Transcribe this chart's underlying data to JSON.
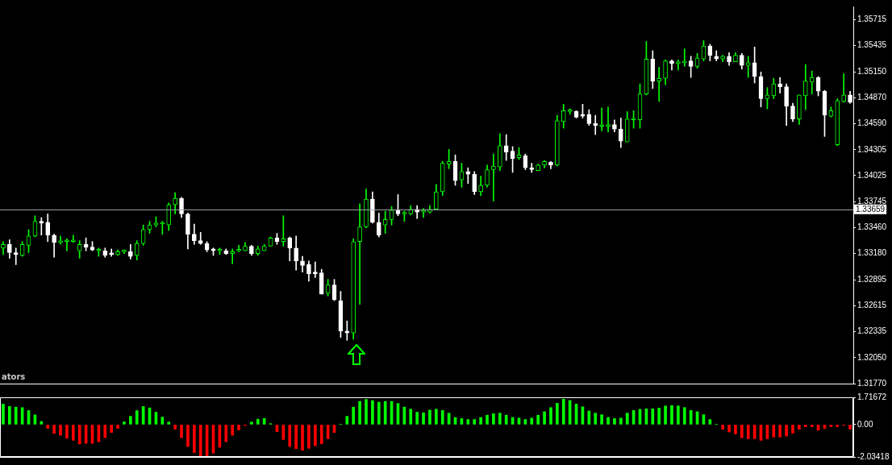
{
  "chart_data": [
    {
      "type": "candlestick",
      "color": "#00ff00",
      "colors": [
        "#00ff00",
        "#ffffff",
        "#ffffff",
        "#00ff00",
        "#00ff00",
        "#00ff00",
        "#ffffff",
        "#ffffff",
        "#ffffff",
        "#00ff00",
        "#00ff00",
        "#00ff00",
        "#00ff00",
        "#ffffff",
        "#ffffff",
        "#00ff00",
        "#ffffff",
        "#ffffff",
        "#00ff00",
        "#00ff00",
        "#ffffff",
        "#00ff00",
        "#00ff00",
        "#00ff00",
        "#00ff00",
        "#00ff00",
        "#00ff00",
        "#00ff00",
        "#ffffff",
        "#ffffff",
        "#ffffff",
        "#ffffff",
        "#ffffff",
        "#ffffff",
        "#00ff00",
        "#ffffff",
        "#00ff00",
        "#00ff00",
        "#00ff00",
        "#ffffff",
        "#00ff00",
        "#00ff00",
        "#00ff00",
        "#ffffff",
        "#00ff00",
        "#ffffff",
        "#ffffff",
        "#ffffff",
        "#ffffff",
        "#ffffff",
        "#ffffff",
        "#00ff00",
        "#ffffff",
        "#ffffff",
        "#ffffff",
        "#00ff00",
        "#00ff00",
        "#00ff00",
        "#ffffff",
        "#ffffff",
        "#00ff00",
        "#00ff00",
        "#ffffff",
        "#00ff00",
        "#00ff00",
        "#ffffff",
        "#00ff00",
        "#00ff00",
        "#00ff00",
        "#00ff00",
        "#00ff00",
        "#ffffff",
        "#00ff00",
        "#ffffff",
        "#ffffff",
        "#00ff00",
        "#00ff00",
        "#00ff00",
        "#00ff00",
        "#ffffff",
        "#ffffff",
        "#00ff00",
        "#ffffff",
        "#ffffff",
        "#00ff00",
        "#00ff00",
        "#ffffff",
        "#00ff00",
        "#00ff00",
        "#00ff00",
        "#ffffff",
        "#ffffff",
        "#ffffff",
        "#ffffff",
        "#00ff00",
        "#00ff00",
        "#ffffff",
        "#ffffff",
        "#00ff00",
        "#00ff00",
        "#00ff00",
        "#00ff00",
        "#ffffff",
        "#00ff00",
        "#00ff00",
        "#ffffff",
        "#00ff00",
        "#00ff00",
        "#ffffff",
        "#00ff00",
        "#00ff00",
        "#ffffff",
        "#ffffff",
        "#00ff00",
        "#ffffff",
        "#00ff00",
        "#ffffff",
        "#00ff00",
        "#ffffff",
        "#ffffff",
        "#00ff00",
        "#00ff00",
        "#ffffff",
        "#ffffff",
        "#ffffff",
        "#00ff00",
        "#00ff00",
        "#00ff00",
        "#ffffff",
        "#ffffff",
        "#00ff00",
        "#00ff00",
        "#00ff00",
        "#ffffff"
      ],
      "categories": [
        null,
        null,
        null,
        null,
        null,
        null,
        null,
        null,
        null,
        null,
        null,
        null,
        null,
        null,
        null,
        null,
        null,
        null,
        null,
        null,
        null,
        null,
        null,
        null,
        null,
        null,
        null,
        null,
        null,
        null,
        null,
        null,
        null,
        null,
        null,
        null,
        null,
        null,
        null,
        null,
        null,
        null,
        null,
        null,
        null,
        null,
        null,
        null,
        null,
        null,
        null,
        null,
        null,
        null,
        null,
        null,
        null,
        null,
        null,
        null,
        null,
        null,
        null,
        null,
        null,
        null,
        null,
        null,
        null,
        null,
        null,
        null,
        null,
        null,
        null,
        null,
        null,
        null,
        null,
        null,
        null,
        null,
        null,
        null,
        null,
        null,
        null,
        null,
        null,
        null,
        null,
        null,
        null,
        null,
        null,
        null,
        null,
        null,
        null,
        null,
        null,
        null,
        null,
        null,
        null,
        null,
        null,
        null,
        null,
        null,
        null,
        null,
        null,
        null,
        null,
        null,
        null,
        null,
        null,
        null,
        null,
        null,
        null,
        null,
        null,
        null,
        null,
        null,
        null,
        null,
        null,
        null,
        null,
        null
      ],
      "ohlc": [
        [
          1.3324,
          1.3331,
          1.3317,
          1.3328
        ],
        [
          1.3328,
          1.3333,
          1.3313,
          1.3319
        ],
        [
          1.3319,
          1.3324,
          1.3306,
          1.3317
        ],
        [
          1.3316,
          1.3331,
          1.3315,
          1.3328
        ],
        [
          1.3327,
          1.3344,
          1.3319,
          1.3337
        ],
        [
          1.3337,
          1.3359,
          1.3336,
          1.3353
        ],
        [
          1.3353,
          1.3357,
          1.3338,
          1.3351
        ],
        [
          1.3352,
          1.3361,
          1.3331,
          1.3338
        ],
        [
          1.3338,
          1.3339,
          1.3314,
          1.333
        ],
        [
          1.333,
          1.3337,
          1.3328,
          1.3331
        ],
        [
          1.3331,
          1.3334,
          1.3321,
          1.3332
        ],
        [
          1.3331,
          1.3338,
          1.333,
          1.3332
        ],
        [
          1.3321,
          1.3332,
          1.3313,
          1.3328
        ],
        [
          1.3328,
          1.3335,
          1.3321,
          1.3325
        ],
        [
          1.3325,
          1.3331,
          1.3321,
          1.3322
        ],
        [
          1.3321,
          1.3324,
          1.3315,
          1.3322
        ],
        [
          1.3321,
          1.3324,
          1.3314,
          1.3316
        ],
        [
          1.3318,
          1.3323,
          1.3315,
          1.3317
        ],
        [
          1.3317,
          1.3322,
          1.3316,
          1.332
        ],
        [
          1.332,
          1.3322,
          1.3318,
          1.332
        ],
        [
          1.332,
          1.3328,
          1.3312,
          1.3315
        ],
        [
          1.3316,
          1.3332,
          1.3311,
          1.3329
        ],
        [
          1.3329,
          1.3349,
          1.3327,
          1.3344
        ],
        [
          1.3344,
          1.3353,
          1.334,
          1.3349
        ],
        [
          1.3349,
          1.3358,
          1.3347,
          1.3351
        ],
        [
          1.335,
          1.3353,
          1.3339,
          1.3351
        ],
        [
          1.3349,
          1.3373,
          1.3343,
          1.3371
        ],
        [
          1.3371,
          1.3384,
          1.3361,
          1.3378
        ],
        [
          1.3378,
          1.3379,
          1.3357,
          1.3361
        ],
        [
          1.3361,
          1.3362,
          1.3323,
          1.3339
        ],
        [
          1.3339,
          1.335,
          1.3328,
          1.3332
        ],
        [
          1.3332,
          1.3341,
          1.3328,
          1.3329
        ],
        [
          1.3329,
          1.3331,
          1.332,
          1.3322
        ],
        [
          1.3323,
          1.3324,
          1.3316,
          1.3321
        ],
        [
          1.3321,
          1.3324,
          1.3317,
          1.3321
        ],
        [
          1.3321,
          1.3323,
          1.3317,
          1.3318
        ],
        [
          1.3318,
          1.3323,
          1.3307,
          1.332
        ],
        [
          1.3321,
          1.3327,
          1.332,
          1.3322
        ],
        [
          1.3321,
          1.333,
          1.3321,
          1.3326
        ],
        [
          1.3326,
          1.3327,
          1.3316,
          1.3318
        ],
        [
          1.3318,
          1.3326,
          1.3316,
          1.3323
        ],
        [
          1.3321,
          1.3328,
          1.3321,
          1.3326
        ],
        [
          1.3326,
          1.3336,
          1.3326,
          1.3335
        ],
        [
          1.3335,
          1.334,
          1.3328,
          1.3331
        ],
        [
          1.3331,
          1.3359,
          1.3326,
          1.3334
        ],
        [
          1.3335,
          1.3336,
          1.331,
          1.3324
        ],
        [
          1.3324,
          1.3337,
          1.33,
          1.331
        ],
        [
          1.331,
          1.3315,
          1.3298,
          1.3305
        ],
        [
          1.3306,
          1.331,
          1.3288,
          1.3296
        ],
        [
          1.3298,
          1.3309,
          1.3292,
          1.3296
        ],
        [
          1.3297,
          1.3301,
          1.3274,
          1.3274
        ],
        [
          1.3275,
          1.329,
          1.3272,
          1.3284
        ],
        [
          1.3284,
          1.329,
          1.3267,
          1.3268
        ],
        [
          1.3267,
          1.3277,
          1.3227,
          1.3234
        ],
        [
          1.3234,
          1.3245,
          1.3224,
          1.3232
        ],
        [
          1.3232,
          1.3334,
          1.3225,
          1.3331
        ],
        [
          1.3331,
          1.3372,
          1.3263,
          1.3347
        ],
        [
          1.3347,
          1.3388,
          1.3346,
          1.3377
        ],
        [
          1.3377,
          1.3385,
          1.3351,
          1.3352
        ],
        [
          1.3352,
          1.3362,
          1.3336,
          1.3338
        ],
        [
          1.3349,
          1.3364,
          1.334,
          1.3355
        ],
        [
          1.3355,
          1.3369,
          1.3349,
          1.3365
        ],
        [
          1.3365,
          1.3382,
          1.3359,
          1.3361
        ],
        [
          1.3361,
          1.3364,
          1.3353,
          1.3362
        ],
        [
          1.3361,
          1.337,
          1.336,
          1.3366
        ],
        [
          1.3366,
          1.337,
          1.3356,
          1.3363
        ],
        [
          1.3363,
          1.3367,
          1.3357,
          1.3363
        ],
        [
          1.3363,
          1.337,
          1.3362,
          1.3366
        ],
        [
          1.3366,
          1.3393,
          1.3366,
          1.3385
        ],
        [
          1.3385,
          1.3418,
          1.3381,
          1.3416
        ],
        [
          1.3415,
          1.3431,
          1.341,
          1.3418
        ],
        [
          1.3418,
          1.3425,
          1.3392,
          1.3397
        ],
        [
          1.3398,
          1.3416,
          1.339,
          1.3407
        ],
        [
          1.3407,
          1.3411,
          1.3394,
          1.3404
        ],
        [
          1.3404,
          1.3407,
          1.3382,
          1.3385
        ],
        [
          1.3385,
          1.3402,
          1.3381,
          1.3392
        ],
        [
          1.3392,
          1.3414,
          1.339,
          1.3409
        ],
        [
          1.3409,
          1.3426,
          1.3375,
          1.3413
        ],
        [
          1.3412,
          1.3448,
          1.3408,
          1.3435
        ],
        [
          1.3435,
          1.3447,
          1.3419,
          1.3428
        ],
        [
          1.3429,
          1.3434,
          1.3406,
          1.3421
        ],
        [
          1.3422,
          1.3433,
          1.342,
          1.3425
        ],
        [
          1.3424,
          1.3426,
          1.3409,
          1.3411
        ],
        [
          1.3411,
          1.3416,
          1.3406,
          1.3409
        ],
        [
          1.3408,
          1.3415,
          1.3408,
          1.3414
        ],
        [
          1.3414,
          1.3419,
          1.3411,
          1.3418
        ],
        [
          1.3417,
          1.3418,
          1.341,
          1.3414
        ],
        [
          1.3414,
          1.3468,
          1.3413,
          1.3462
        ],
        [
          1.3461,
          1.348,
          1.3454,
          1.3473
        ],
        [
          1.3472,
          1.3475,
          1.3469,
          1.3473
        ],
        [
          1.3472,
          1.3473,
          1.3465,
          1.3466
        ],
        [
          1.3469,
          1.348,
          1.3465,
          1.3467
        ],
        [
          1.3469,
          1.3474,
          1.3457,
          1.3459
        ],
        [
          1.3459,
          1.3468,
          1.3447,
          1.3457
        ],
        [
          1.3456,
          1.3476,
          1.3451,
          1.3457
        ],
        [
          1.3456,
          1.3477,
          1.345,
          1.3458
        ],
        [
          1.3458,
          1.3463,
          1.345,
          1.3453
        ],
        [
          1.3453,
          1.3465,
          1.3433,
          1.344
        ],
        [
          1.3439,
          1.3472,
          1.3439,
          1.3464
        ],
        [
          1.3463,
          1.3473,
          1.3454,
          1.3464
        ],
        [
          1.3463,
          1.3502,
          1.3454,
          1.3491
        ],
        [
          1.3491,
          1.3548,
          1.349,
          1.3529
        ],
        [
          1.3529,
          1.3538,
          1.3497,
          1.3505
        ],
        [
          1.3505,
          1.352,
          1.3483,
          1.3508
        ],
        [
          1.3508,
          1.3528,
          1.3501,
          1.3527
        ],
        [
          1.3527,
          1.3528,
          1.3517,
          1.3524
        ],
        [
          1.3524,
          1.3528,
          1.3517,
          1.3525
        ],
        [
          1.3525,
          1.354,
          1.3521,
          1.3526
        ],
        [
          1.3527,
          1.3532,
          1.3509,
          1.3521
        ],
        [
          1.3521,
          1.3535,
          1.3519,
          1.353
        ],
        [
          1.3529,
          1.3549,
          1.3527,
          1.3543
        ],
        [
          1.3543,
          1.3545,
          1.3527,
          1.3533
        ],
        [
          1.3532,
          1.3538,
          1.3527,
          1.3529
        ],
        [
          1.3529,
          1.3533,
          1.3526,
          1.3532
        ],
        [
          1.3532,
          1.3536,
          1.3522,
          1.3526
        ],
        [
          1.3526,
          1.3536,
          1.3526,
          1.3533
        ],
        [
          1.3533,
          1.3535,
          1.3518,
          1.3522
        ],
        [
          1.3522,
          1.3532,
          1.3509,
          1.3525
        ],
        [
          1.3525,
          1.3542,
          1.3503,
          1.351
        ],
        [
          1.351,
          1.3515,
          1.3477,
          1.3486
        ],
        [
          1.3486,
          1.3498,
          1.3475,
          1.349
        ],
        [
          1.3489,
          1.3508,
          1.3486,
          1.3502
        ],
        [
          1.3502,
          1.3509,
          1.3492,
          1.3499
        ],
        [
          1.3499,
          1.3502,
          1.3457,
          1.3478
        ],
        [
          1.3478,
          1.3481,
          1.3461,
          1.3464
        ],
        [
          1.3464,
          1.349,
          1.3458,
          1.349
        ],
        [
          1.3489,
          1.3523,
          1.3474,
          1.3505
        ],
        [
          1.3504,
          1.3516,
          1.3491,
          1.3509
        ],
        [
          1.3509,
          1.351,
          1.3489,
          1.3494
        ],
        [
          1.3494,
          1.3495,
          1.3445,
          1.3468
        ],
        [
          1.3467,
          1.3477,
          1.3466,
          1.3473
        ],
        [
          1.3436,
          1.3486,
          1.3435,
          1.3484
        ],
        [
          1.3483,
          1.3513,
          1.3482,
          1.349
        ],
        [
          1.349,
          1.3494,
          1.3481,
          1.3482
        ]
      ],
      "ylim": [
        1.3177,
        1.3586
      ],
      "yticks": [
        1.35715,
        1.35435,
        {
          "value": 1.3515,
          "label": "1.35150"
        },
        {
          "value": 1.3487,
          "label": "1.34870"
        },
        {
          "value": 1.3459,
          "label": "1.34590"
        },
        1.34305,
        1.34025,
        1.33745,
        {
          "value": 1.3346,
          "label": "1.33460"
        },
        {
          "value": 1.3318,
          "label": "1.33180"
        },
        1.32895,
        1.32615,
        1.32335,
        {
          "value": 1.3205,
          "label": "1.32050"
        },
        {
          "value": 1.3177,
          "label": "1.31770"
        }
      ],
      "tick_labels": "y",
      "ref_lines": [
        {
          "axis": "y",
          "value": 1.33659,
          "label": "1.33659",
          "color": "#a0a8b0"
        }
      ],
      "annotations": [
        "ators"
      ]
    },
    {
      "type": "bar",
      "categories": [
        null,
        null,
        null,
        null,
        null,
        null,
        null,
        null,
        null,
        null,
        null,
        null,
        null,
        null,
        null,
        null,
        null,
        null,
        null,
        null,
        null,
        null,
        null,
        null,
        null,
        null,
        null,
        null,
        null,
        null,
        null,
        null,
        null,
        null,
        null,
        null,
        null,
        null,
        null,
        null,
        null,
        null,
        null,
        null,
        null,
        null,
        null,
        null,
        null,
        null,
        null,
        null,
        null,
        null,
        null,
        null,
        null,
        null,
        null,
        null,
        null,
        null,
        null,
        null,
        null,
        null,
        null,
        null,
        null,
        null,
        null,
        null,
        null,
        null,
        null,
        null,
        null,
        null,
        null,
        null,
        null,
        null,
        null,
        null,
        null,
        null,
        null,
        null,
        null,
        null,
        null,
        null,
        null,
        null,
        null,
        null,
        null,
        null,
        null,
        null,
        null,
        null,
        null,
        null,
        null,
        null,
        null,
        null,
        null,
        null,
        null,
        null,
        null,
        null,
        null,
        null,
        null,
        null,
        null,
        null,
        null,
        null,
        null,
        null,
        null,
        null,
        null,
        null,
        null,
        null,
        null,
        null,
        null,
        null
      ],
      "values": [
        1.29,
        1.14,
        1.1,
        1.07,
        0.88,
        0.61,
        0.2,
        -0.24,
        -0.55,
        -0.67,
        -0.86,
        -0.99,
        -1.22,
        -1.18,
        -1.18,
        -1.08,
        -0.82,
        -0.5,
        -0.24,
        0.17,
        0.52,
        0.88,
        1.14,
        1.05,
        0.78,
        0.47,
        0.16,
        -0.28,
        -0.82,
        -1.38,
        -1.76,
        -2.01,
        -2.01,
        -1.79,
        -1.43,
        -1.08,
        -0.67,
        -0.33,
        -0.06,
        0.16,
        0.34,
        0.39,
        0.06,
        -0.45,
        -0.94,
        -1.38,
        -1.52,
        -1.62,
        -1.49,
        -1.33,
        -1.21,
        -0.89,
        -0.5,
        0.02,
        0.52,
        1.1,
        1.46,
        1.58,
        1.51,
        1.41,
        1.46,
        1.46,
        1.33,
        1.1,
        0.97,
        0.78,
        0.74,
        0.91,
        0.97,
        0.89,
        0.72,
        0.45,
        0.38,
        0.32,
        0.32,
        0.45,
        0.59,
        0.69,
        0.72,
        0.59,
        0.45,
        0.41,
        0.32,
        0.41,
        0.59,
        0.81,
        1.07,
        1.34,
        1.6,
        1.52,
        1.29,
        1.12,
        0.86,
        0.72,
        0.62,
        0.45,
        0.38,
        0.41,
        0.72,
        0.89,
        0.96,
        0.99,
        0.99,
        1.04,
        1.17,
        1.2,
        1.17,
        1.07,
        0.89,
        0.81,
        0.62,
        0.32,
        0.02,
        -0.29,
        -0.46,
        -0.59,
        -0.83,
        -0.89,
        -0.89,
        -0.99,
        -0.89,
        -0.78,
        -0.78,
        -0.72,
        -0.54,
        -0.29,
        -0.14,
        -0.14,
        -0.35,
        -0.24,
        -0.13,
        -0.13,
        -0.05,
        -0.29
      ],
      "colors": [
        "#00ff00",
        "#00ff00",
        "#00ff00",
        "#00ff00",
        "#00ff00",
        "#00ff00",
        "#00ff00",
        "#ff0000",
        "#ff0000",
        "#ff0000",
        "#ff0000",
        "#ff0000",
        "#ff0000",
        "#ff0000",
        "#ff0000",
        "#ff0000",
        "#ff0000",
        "#ff0000",
        "#ff0000",
        "#00ff00",
        "#00ff00",
        "#00ff00",
        "#00ff00",
        "#00ff00",
        "#00ff00",
        "#00ff00",
        "#00ff00",
        "#ff0000",
        "#ff0000",
        "#ff0000",
        "#ff0000",
        "#ff0000",
        "#ff0000",
        "#ff0000",
        "#ff0000",
        "#ff0000",
        "#ff0000",
        "#ff0000",
        "#ff0000",
        "#00ff00",
        "#00ff00",
        "#00ff00",
        "#00ff00",
        "#ff0000",
        "#ff0000",
        "#ff0000",
        "#ff0000",
        "#ff0000",
        "#ff0000",
        "#ff0000",
        "#ff0000",
        "#ff0000",
        "#ff0000",
        "#00ff00",
        "#00ff00",
        "#00ff00",
        "#00ff00",
        "#00ff00",
        "#00ff00",
        "#00ff00",
        "#00ff00",
        "#00ff00",
        "#00ff00",
        "#00ff00",
        "#00ff00",
        "#00ff00",
        "#00ff00",
        "#00ff00",
        "#00ff00",
        "#00ff00",
        "#00ff00",
        "#00ff00",
        "#00ff00",
        "#00ff00",
        "#00ff00",
        "#00ff00",
        "#00ff00",
        "#00ff00",
        "#00ff00",
        "#00ff00",
        "#00ff00",
        "#00ff00",
        "#00ff00",
        "#00ff00",
        "#00ff00",
        "#00ff00",
        "#00ff00",
        "#00ff00",
        "#00ff00",
        "#00ff00",
        "#00ff00",
        "#00ff00",
        "#00ff00",
        "#00ff00",
        "#00ff00",
        "#00ff00",
        "#00ff00",
        "#00ff00",
        "#00ff00",
        "#00ff00",
        "#00ff00",
        "#00ff00",
        "#00ff00",
        "#00ff00",
        "#00ff00",
        "#00ff00",
        "#00ff00",
        "#00ff00",
        "#00ff00",
        "#00ff00",
        "#00ff00",
        "#00ff00",
        "#00ff00",
        "#ff0000",
        "#ff0000",
        "#ff0000",
        "#ff0000",
        "#ff0000",
        "#ff0000",
        "#ff0000",
        "#ff0000",
        "#ff0000",
        "#ff0000",
        "#ff0000",
        "#ff0000",
        "#ff0000",
        "#ff0000",
        "#ff0000",
        "#ff0000",
        "#ff0000",
        "#ff0000",
        "#ff0000",
        "#ff0000",
        "#ff0000"
      ],
      "ylim": [
        -2.03418,
        1.71672
      ],
      "yticks": [
        1.71672,
        {
          "value": 0,
          "label": "0.00"
        },
        -2.03418
      ],
      "tick_labels": "y"
    }
  ]
}
